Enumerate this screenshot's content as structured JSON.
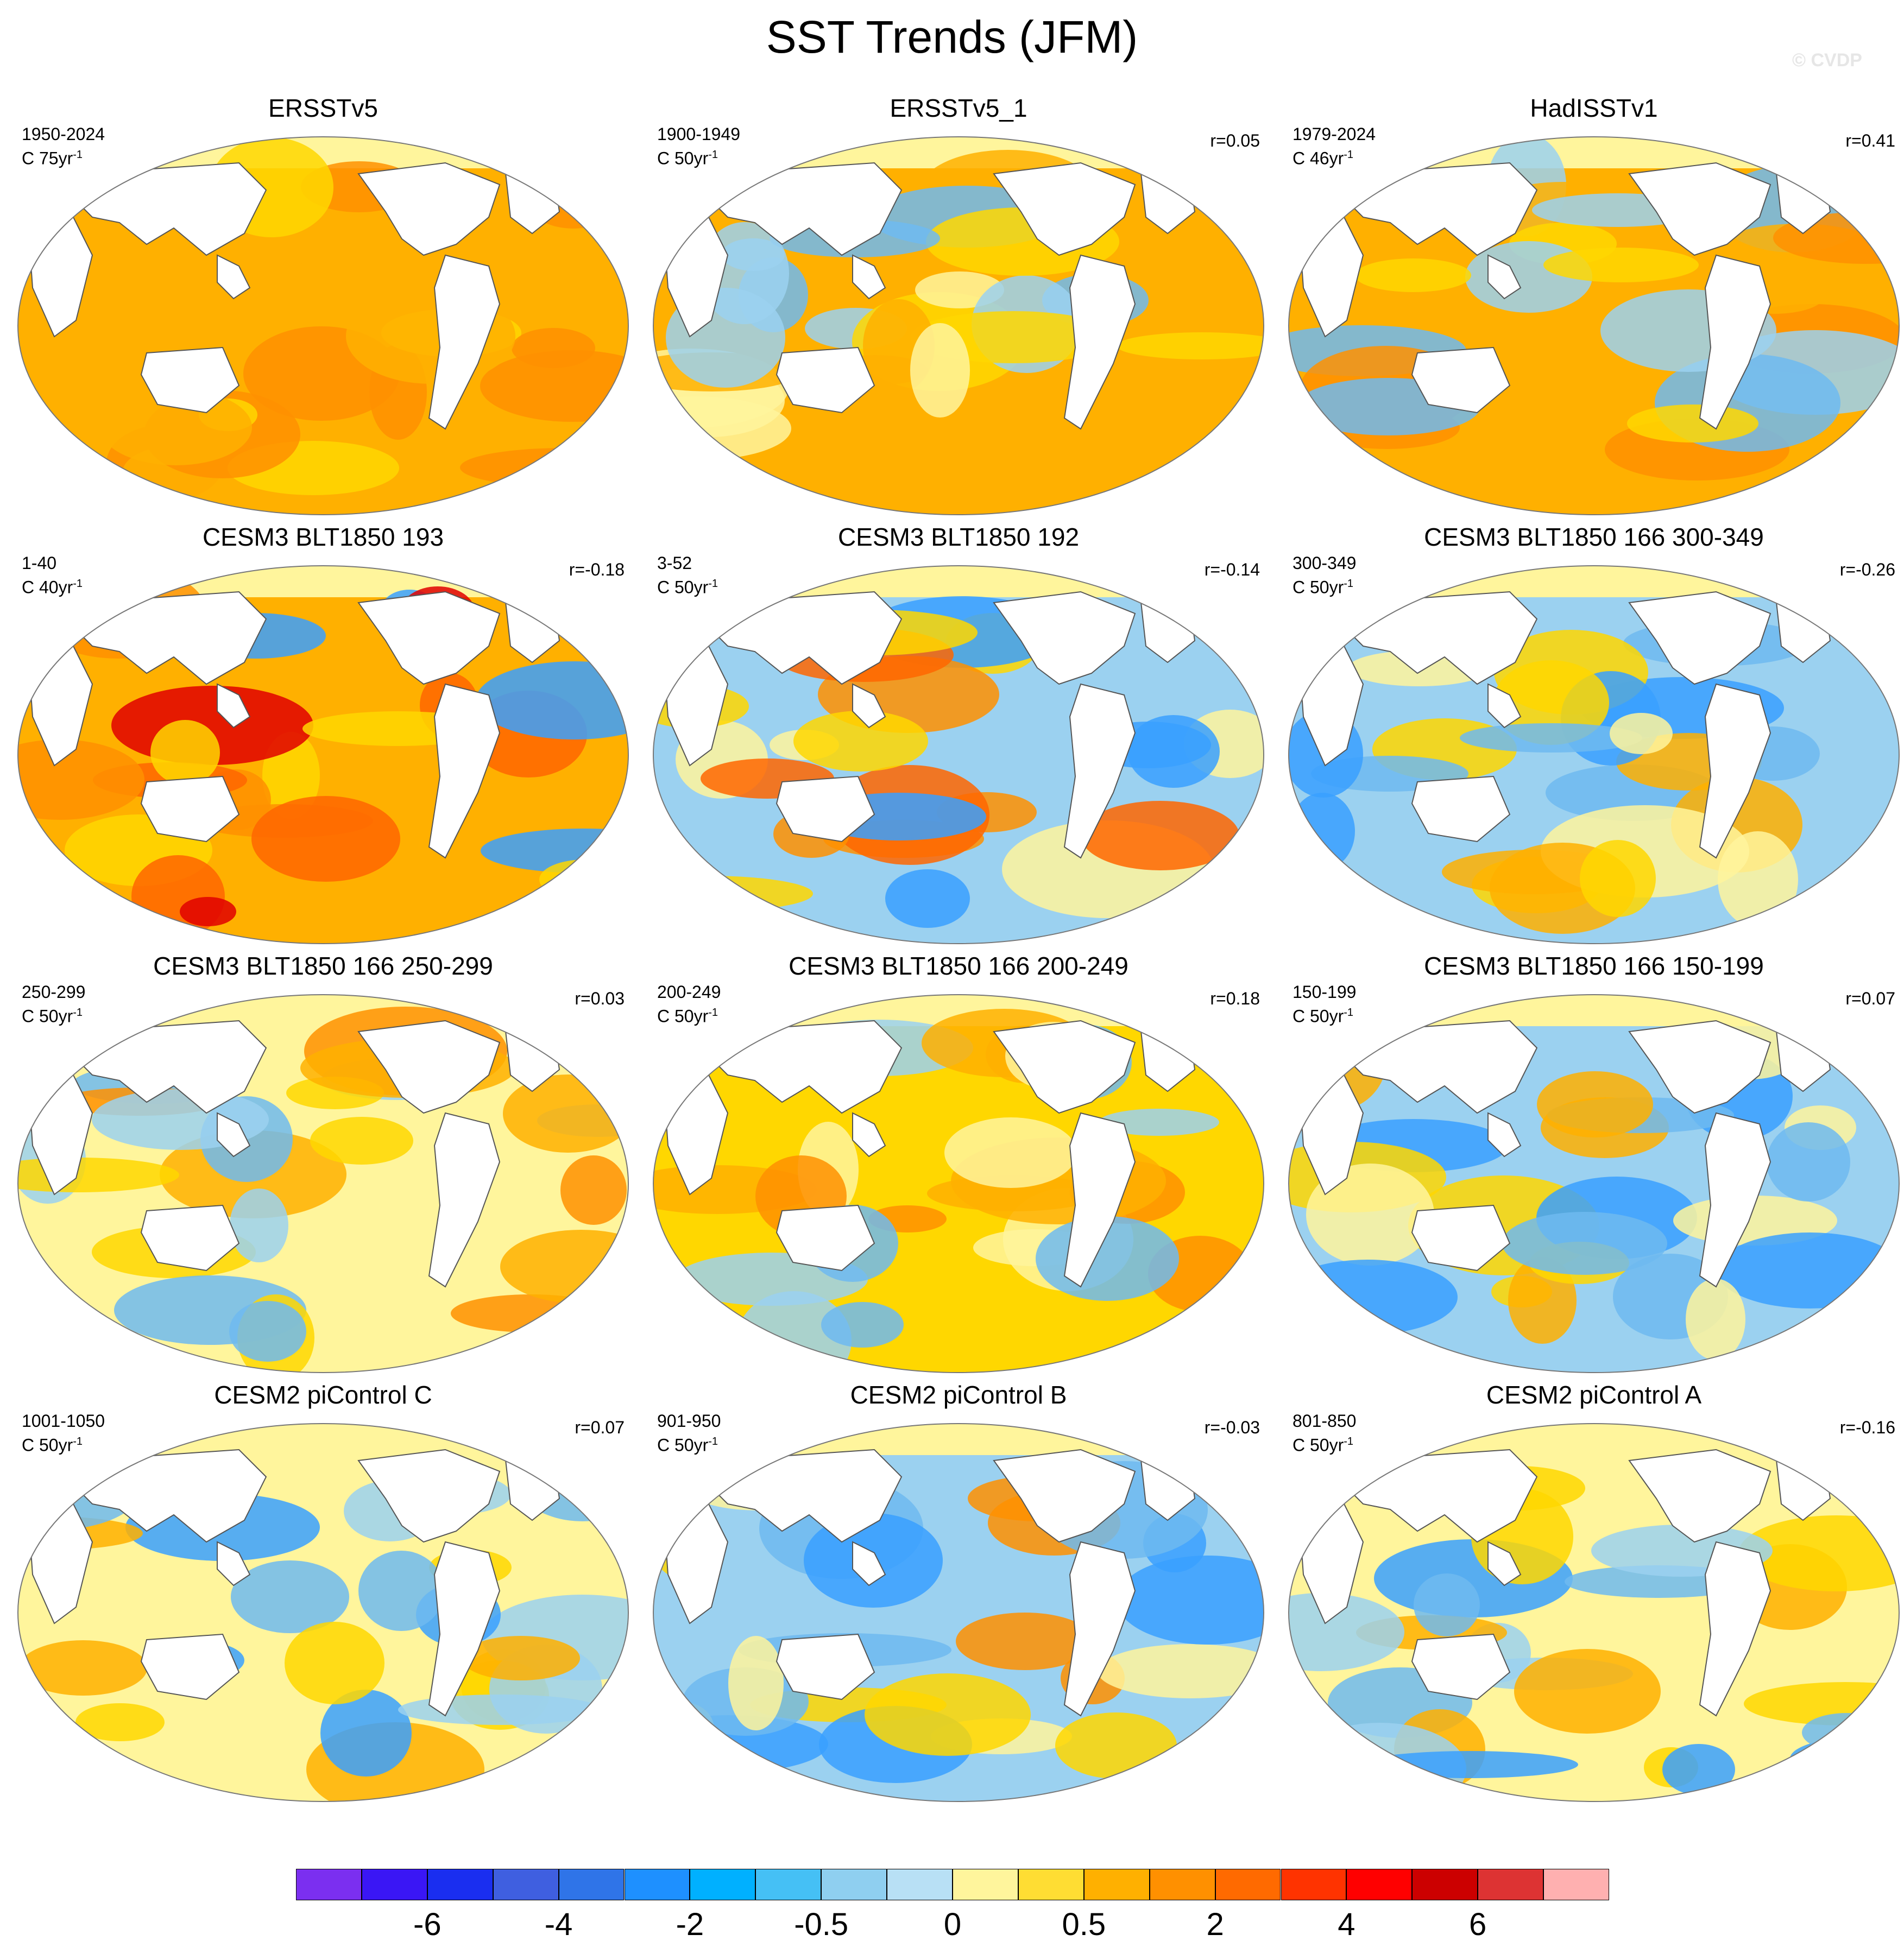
{
  "title": "SST Trends (JFM)",
  "watermark": "© CVDP",
  "panels": [
    {
      "title": "ERSSTv5",
      "period": "1950-2024",
      "units": "C 75yr",
      "corr": "",
      "palette": [
        "#ffb000",
        "#ff9000",
        "#ffb000",
        "#ffd700",
        "#ff9000",
        "#ffb000"
      ]
    },
    {
      "title": "ERSSTv5_1",
      "period": "1900-1949",
      "units": "C 50yr",
      "corr": "r=0.05",
      "palette": [
        "#ffb000",
        "#fff59c",
        "#9bd1f0",
        "#ffd700",
        "#6fbaf0",
        "#ffb000"
      ]
    },
    {
      "title": "HadISSTv1",
      "period": "1979-2024",
      "units": "C 46yr",
      "corr": "r=0.41",
      "palette": [
        "#ffb000",
        "#ff9000",
        "#9bd1f0",
        "#ffb000",
        "#6fbaf0",
        "#ffd700"
      ]
    },
    {
      "title": "CESM3 BLT1850 193",
      "period": "1-40",
      "units": "C 40yr",
      "corr": "r=-0.18",
      "palette": [
        "#ffb000",
        "#ff6600",
        "#ffd700",
        "#ff9000",
        "#3aa0ff",
        "#e00000"
      ]
    },
    {
      "title": "CESM3 BLT1850 192",
      "period": "3-52",
      "units": "C 50yr",
      "corr": "r=-0.14",
      "palette": [
        "#9bd1f0",
        "#ffd700",
        "#3aa0ff",
        "#ff9000",
        "#fff59c",
        "#ff6600"
      ]
    },
    {
      "title": "CESM3 BLT1850 166 300-349",
      "period": "300-349",
      "units": "C 50yr",
      "corr": "r=-0.26",
      "palette": [
        "#9bd1f0",
        "#ffd700",
        "#6fbaf0",
        "#ffb000",
        "#fff59c",
        "#3aa0ff"
      ]
    },
    {
      "title": "CESM3 BLT1850 166 250-299",
      "period": "250-299",
      "units": "C 50yr",
      "corr": "r=0.03",
      "palette": [
        "#fff59c",
        "#ffd700",
        "#9bd1f0",
        "#ffb000",
        "#6fbaf0",
        "#ff9000"
      ]
    },
    {
      "title": "CESM3 BLT1850 166 200-249",
      "period": "200-249",
      "units": "C 50yr",
      "corr": "r=0.18",
      "palette": [
        "#ffd700",
        "#ffb000",
        "#fff59c",
        "#9bd1f0",
        "#ff9000",
        "#6fbaf0"
      ]
    },
    {
      "title": "CESM3 BLT1850 166 150-199",
      "period": "150-199",
      "units": "C 50yr",
      "corr": "r=0.07",
      "palette": [
        "#9bd1f0",
        "#fff59c",
        "#3aa0ff",
        "#ffd700",
        "#ffb000",
        "#6fbaf0"
      ]
    },
    {
      "title": "CESM2 piControl C",
      "period": "1001-1050",
      "units": "C 50yr",
      "corr": "r=0.07",
      "palette": [
        "#fff59c",
        "#9bd1f0",
        "#ffd700",
        "#3aa0ff",
        "#ffb000",
        "#6fbaf0"
      ]
    },
    {
      "title": "CESM2 piControl B",
      "period": "901-950",
      "units": "C 50yr",
      "corr": "r=-0.03",
      "palette": [
        "#9bd1f0",
        "#fff59c",
        "#3aa0ff",
        "#ffd700",
        "#ff9000",
        "#6fbaf0"
      ]
    },
    {
      "title": "CESM2 piControl A",
      "period": "801-850",
      "units": "C 50yr",
      "corr": "r=-0.16",
      "palette": [
        "#fff59c",
        "#9bd1f0",
        "#ffd700",
        "#3aa0ff",
        "#ffb000",
        "#6fbaf0"
      ]
    }
  ],
  "colorbar": {
    "colors": [
      "#7b2ff0",
      "#3a16f5",
      "#1a2ef0",
      "#3f5fe0",
      "#2f74e8",
      "#1e90ff",
      "#00b0ff",
      "#45c0f5",
      "#8fcff0",
      "#b8e0f5",
      "#fff59c",
      "#ffdd33",
      "#ffb000",
      "#ff9000",
      "#ff6a00",
      "#ff3300",
      "#ff0000",
      "#cc0000",
      "#dd3333",
      "#ffb0b0"
    ],
    "labels": [
      "-6",
      "-4",
      "-2",
      "-0.5",
      "0",
      "0.5",
      "2",
      "4",
      "6"
    ]
  }
}
